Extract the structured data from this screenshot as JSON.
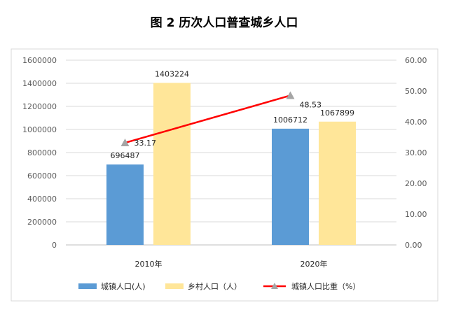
{
  "chart_data": {
    "type": "bar",
    "title": "图 2  历次人口普查城乡人口",
    "categories": [
      "2010年",
      "2020年"
    ],
    "series": [
      {
        "name": "城镇人口(人)",
        "type": "bar",
        "axis": "left",
        "color": "#5b9bd5",
        "values": [
          696487,
          1006712
        ]
      },
      {
        "name": "乡村人口（人）",
        "type": "bar",
        "axis": "left",
        "color": "#ffe699",
        "values": [
          1403224,
          1067899
        ]
      },
      {
        "name": "城镇人口比重（%）",
        "type": "line",
        "axis": "right",
        "color": "#ff0000",
        "marker_color": "#a5a5a5",
        "values": [
          33.17,
          48.53
        ]
      }
    ],
    "y_left": {
      "min": 0,
      "max": 1600000,
      "step": 200000
    },
    "y_right": {
      "min": 0,
      "max": 60,
      "step": 10,
      "decimals": 2
    },
    "grid": true,
    "legend": "bottom"
  }
}
